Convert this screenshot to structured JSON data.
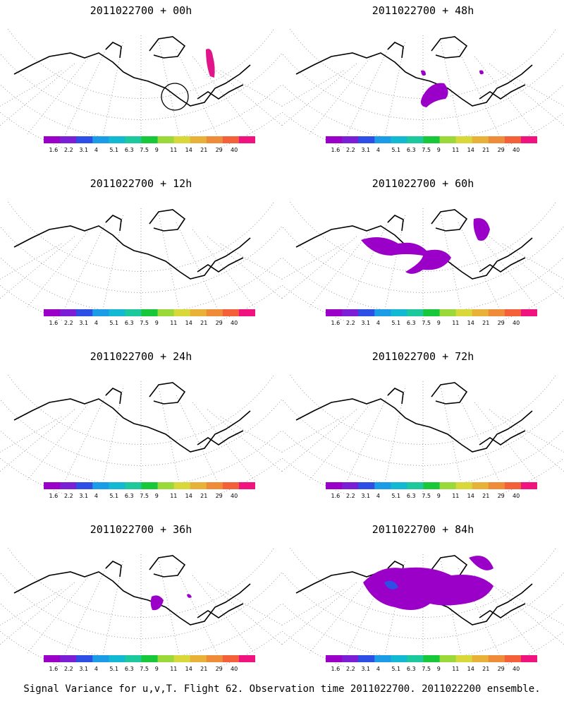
{
  "panels": [
    {
      "title": "2011022700 + 00h"
    },
    {
      "title": "2011022700 + 48h"
    },
    {
      "title": "2011022700 + 12h"
    },
    {
      "title": "2011022700 + 60h"
    },
    {
      "title": "2011022700 + 24h"
    },
    {
      "title": "2011022700 + 72h"
    },
    {
      "title": "2011022700 + 36h"
    },
    {
      "title": "2011022700 + 84h"
    }
  ],
  "colorbar": {
    "labels": [
      "1.6",
      "2.2",
      "3.1",
      "4",
      "5.1",
      "6.3",
      "7.5",
      "9",
      "11",
      "14",
      "21",
      "29",
      "40"
    ],
    "colors": [
      "#9b00c8",
      "#7a1fd6",
      "#2d4fe6",
      "#1a9ce6",
      "#13b8d2",
      "#1dc89c",
      "#17c83a",
      "#9bd83a",
      "#d8d83a",
      "#e8b23a",
      "#ee8c3a",
      "#f4603a",
      "#f0127e"
    ]
  },
  "footer": "Signal Variance for u,v,T. Flight 62. Observation time 2011022700. 2011022200 ensemble."
}
